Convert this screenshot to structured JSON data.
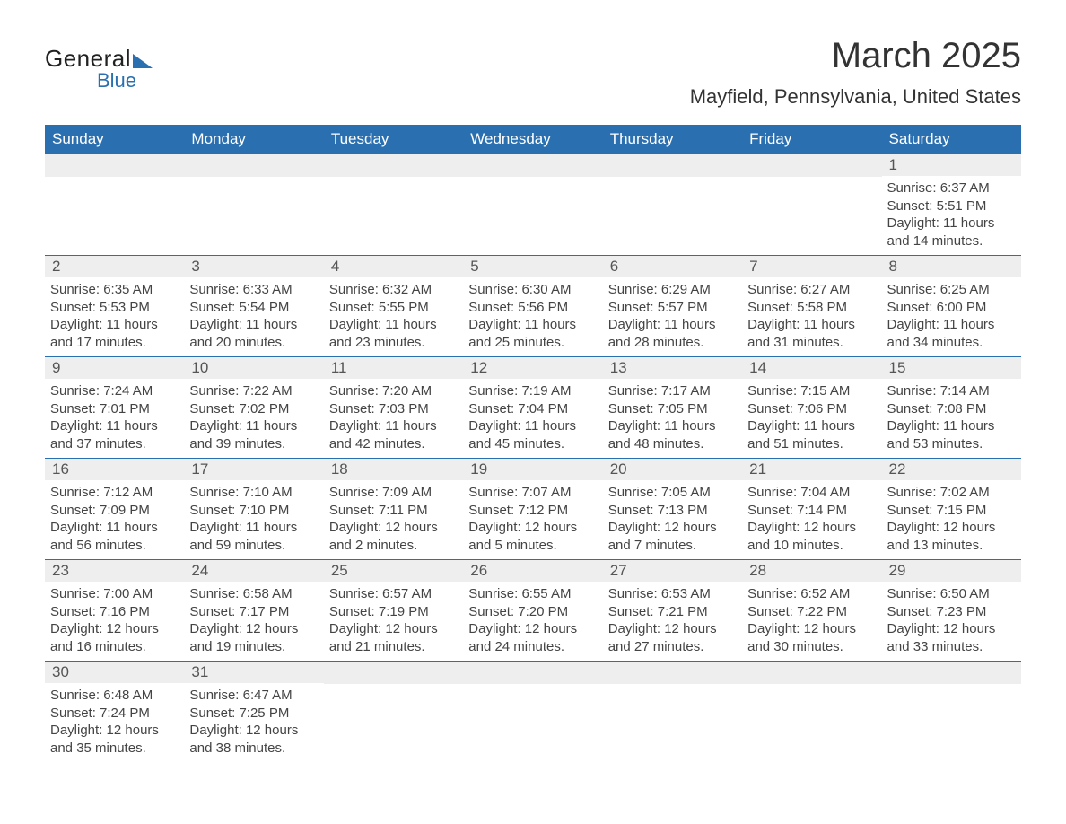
{
  "colors": {
    "header_bg": "#2a6fb0",
    "header_text": "#ffffff",
    "daynum_bg": "#eeeeee",
    "text": "#444444",
    "page_bg": "#ffffff",
    "row_divider": "#2a6fb0"
  },
  "typography": {
    "base_font": "Arial, Helvetica, sans-serif",
    "month_title_size_pt": 30,
    "location_size_pt": 17,
    "dayheader_size_pt": 13,
    "body_size_pt": 11
  },
  "logo": {
    "line1": "General",
    "line2": "Blue",
    "accent_color": "#2a6fb0"
  },
  "title": {
    "month": "March 2025",
    "location": "Mayfield, Pennsylvania, United States"
  },
  "day_headers": [
    "Sunday",
    "Monday",
    "Tuesday",
    "Wednesday",
    "Thursday",
    "Friday",
    "Saturday"
  ],
  "labels": {
    "sunrise": "Sunrise",
    "sunset": "Sunset",
    "daylight": "Daylight"
  },
  "weeks": [
    [
      {
        "empty": true
      },
      {
        "empty": true
      },
      {
        "empty": true
      },
      {
        "empty": true
      },
      {
        "empty": true
      },
      {
        "empty": true
      },
      {
        "n": "1",
        "sunrise": "6:37 AM",
        "sunset": "5:51 PM",
        "daylight": "11 hours and 14 minutes."
      }
    ],
    [
      {
        "n": "2",
        "sunrise": "6:35 AM",
        "sunset": "5:53 PM",
        "daylight": "11 hours and 17 minutes."
      },
      {
        "n": "3",
        "sunrise": "6:33 AM",
        "sunset": "5:54 PM",
        "daylight": "11 hours and 20 minutes."
      },
      {
        "n": "4",
        "sunrise": "6:32 AM",
        "sunset": "5:55 PM",
        "daylight": "11 hours and 23 minutes."
      },
      {
        "n": "5",
        "sunrise": "6:30 AM",
        "sunset": "5:56 PM",
        "daylight": "11 hours and 25 minutes."
      },
      {
        "n": "6",
        "sunrise": "6:29 AM",
        "sunset": "5:57 PM",
        "daylight": "11 hours and 28 minutes."
      },
      {
        "n": "7",
        "sunrise": "6:27 AM",
        "sunset": "5:58 PM",
        "daylight": "11 hours and 31 minutes."
      },
      {
        "n": "8",
        "sunrise": "6:25 AM",
        "sunset": "6:00 PM",
        "daylight": "11 hours and 34 minutes."
      }
    ],
    [
      {
        "n": "9",
        "sunrise": "7:24 AM",
        "sunset": "7:01 PM",
        "daylight": "11 hours and 37 minutes."
      },
      {
        "n": "10",
        "sunrise": "7:22 AM",
        "sunset": "7:02 PM",
        "daylight": "11 hours and 39 minutes."
      },
      {
        "n": "11",
        "sunrise": "7:20 AM",
        "sunset": "7:03 PM",
        "daylight": "11 hours and 42 minutes."
      },
      {
        "n": "12",
        "sunrise": "7:19 AM",
        "sunset": "7:04 PM",
        "daylight": "11 hours and 45 minutes."
      },
      {
        "n": "13",
        "sunrise": "7:17 AM",
        "sunset": "7:05 PM",
        "daylight": "11 hours and 48 minutes."
      },
      {
        "n": "14",
        "sunrise": "7:15 AM",
        "sunset": "7:06 PM",
        "daylight": "11 hours and 51 minutes."
      },
      {
        "n": "15",
        "sunrise": "7:14 AM",
        "sunset": "7:08 PM",
        "daylight": "11 hours and 53 minutes."
      }
    ],
    [
      {
        "n": "16",
        "sunrise": "7:12 AM",
        "sunset": "7:09 PM",
        "daylight": "11 hours and 56 minutes."
      },
      {
        "n": "17",
        "sunrise": "7:10 AM",
        "sunset": "7:10 PM",
        "daylight": "11 hours and 59 minutes."
      },
      {
        "n": "18",
        "sunrise": "7:09 AM",
        "sunset": "7:11 PM",
        "daylight": "12 hours and 2 minutes."
      },
      {
        "n": "19",
        "sunrise": "7:07 AM",
        "sunset": "7:12 PM",
        "daylight": "12 hours and 5 minutes."
      },
      {
        "n": "20",
        "sunrise": "7:05 AM",
        "sunset": "7:13 PM",
        "daylight": "12 hours and 7 minutes."
      },
      {
        "n": "21",
        "sunrise": "7:04 AM",
        "sunset": "7:14 PM",
        "daylight": "12 hours and 10 minutes."
      },
      {
        "n": "22",
        "sunrise": "7:02 AM",
        "sunset": "7:15 PM",
        "daylight": "12 hours and 13 minutes."
      }
    ],
    [
      {
        "n": "23",
        "sunrise": "7:00 AM",
        "sunset": "7:16 PM",
        "daylight": "12 hours and 16 minutes."
      },
      {
        "n": "24",
        "sunrise": "6:58 AM",
        "sunset": "7:17 PM",
        "daylight": "12 hours and 19 minutes."
      },
      {
        "n": "25",
        "sunrise": "6:57 AM",
        "sunset": "7:19 PM",
        "daylight": "12 hours and 21 minutes."
      },
      {
        "n": "26",
        "sunrise": "6:55 AM",
        "sunset": "7:20 PM",
        "daylight": "12 hours and 24 minutes."
      },
      {
        "n": "27",
        "sunrise": "6:53 AM",
        "sunset": "7:21 PM",
        "daylight": "12 hours and 27 minutes."
      },
      {
        "n": "28",
        "sunrise": "6:52 AM",
        "sunset": "7:22 PM",
        "daylight": "12 hours and 30 minutes."
      },
      {
        "n": "29",
        "sunrise": "6:50 AM",
        "sunset": "7:23 PM",
        "daylight": "12 hours and 33 minutes."
      }
    ],
    [
      {
        "n": "30",
        "sunrise": "6:48 AM",
        "sunset": "7:24 PM",
        "daylight": "12 hours and 35 minutes."
      },
      {
        "n": "31",
        "sunrise": "6:47 AM",
        "sunset": "7:25 PM",
        "daylight": "12 hours and 38 minutes."
      },
      {
        "empty": true
      },
      {
        "empty": true
      },
      {
        "empty": true
      },
      {
        "empty": true
      },
      {
        "empty": true
      }
    ]
  ]
}
